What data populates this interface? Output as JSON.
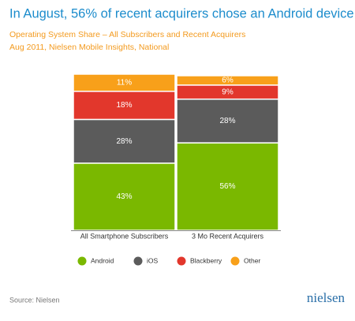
{
  "chart_data": {
    "type": "stacked_bar",
    "title": "In August, 56% of recent acquirers chose an Android device",
    "subtitle_lines": [
      "Operating System Share – All Subscribers and Recent Acquirers",
      "Aug 2011, Nielsen Mobile Insights, National"
    ],
    "categories": [
      "All Smartphone Subscribers",
      "3 Mo Recent Acquirers"
    ],
    "series": [
      {
        "name": "Android",
        "color": "#7ab800",
        "values": [
          43,
          56
        ],
        "value_labels": [
          "43%",
          "56%"
        ]
      },
      {
        "name": "iOS",
        "color": "#5b5b5b",
        "values": [
          28,
          28
        ],
        "value_labels": [
          "28%",
          "28%"
        ]
      },
      {
        "name": "Blackberry",
        "color": "#e2372c",
        "values": [
          18,
          9
        ],
        "value_labels": [
          "18%",
          "9%"
        ]
      },
      {
        "name": "Other",
        "color": "#f8a01a",
        "values": [
          11,
          6
        ],
        "value_labels": [
          "11%",
          "6%"
        ]
      }
    ],
    "ylim": [
      0,
      100
    ],
    "source": "Source: Nielsen",
    "logo": "nielsen"
  }
}
